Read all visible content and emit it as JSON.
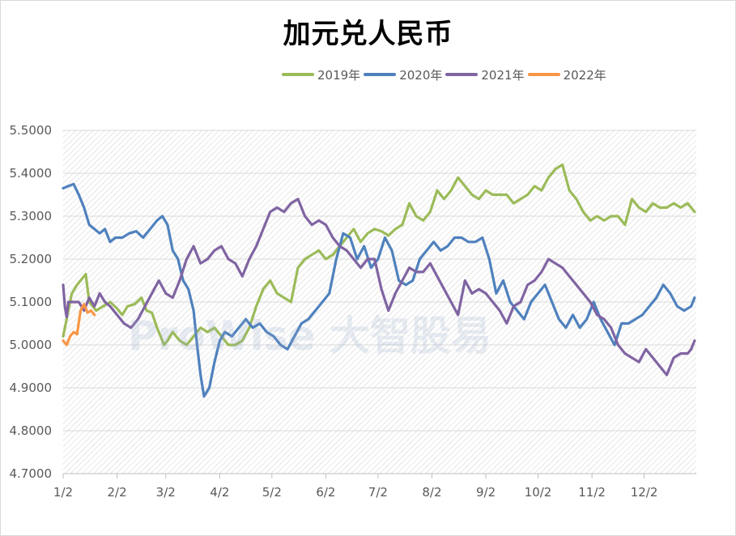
{
  "chart_data": {
    "type": "line",
    "title": "加元兑人民币",
    "xlabel": "",
    "ylabel": "",
    "ylim": [
      4.7,
      5.5
    ],
    "yticks": [
      "5.5000",
      "5.4000",
      "5.3000",
      "5.2000",
      "5.1000",
      "5.0000",
      "4.9000",
      "4.8000",
      "4.7000"
    ],
    "xticks": [
      "1/2",
      "2/2",
      "3/2",
      "4/2",
      "5/2",
      "6/2",
      "7/2",
      "8/2",
      "9/2",
      "10/2",
      "11/2",
      "12/2"
    ],
    "grid": true,
    "legend_position": "top",
    "watermark": "ProWise 大智股易",
    "series": [
      {
        "name": "2019年",
        "color": "#9bbb59",
        "x": [
          1,
          6,
          9,
          14,
          16,
          20,
          24,
          28,
          32,
          35,
          38,
          42,
          46,
          49,
          52,
          55,
          59,
          61,
          64,
          68,
          72,
          76,
          80,
          84,
          88,
          92,
          96,
          100,
          104,
          108,
          112,
          116,
          120,
          124,
          128,
          132,
          136,
          140,
          144,
          148,
          152,
          156,
          160,
          164,
          168,
          172,
          176,
          180,
          184,
          188,
          192,
          196,
          200,
          204,
          208,
          212,
          216,
          220,
          224,
          228,
          232,
          236,
          240,
          244,
          248,
          252,
          256,
          260,
          264,
          268,
          272,
          276,
          280,
          284,
          288,
          292,
          296,
          300,
          304,
          308,
          312,
          316,
          320,
          324,
          328,
          332,
          336,
          340,
          344,
          348,
          352,
          356,
          360,
          364
        ],
        "values": [
          5.02,
          5.12,
          5.14,
          5.165,
          5.1,
          5.08,
          5.09,
          5.1,
          5.085,
          5.07,
          5.09,
          5.095,
          5.11,
          5.08,
          5.075,
          5.04,
          5.0,
          5.01,
          5.03,
          5.01,
          5.0,
          5.02,
          5.04,
          5.03,
          5.04,
          5.02,
          5.0,
          5.0,
          5.01,
          5.04,
          5.09,
          5.13,
          5.15,
          5.12,
          5.11,
          5.1,
          5.18,
          5.2,
          5.21,
          5.22,
          5.2,
          5.21,
          5.23,
          5.25,
          5.27,
          5.24,
          5.26,
          5.27,
          5.265,
          5.255,
          5.27,
          5.28,
          5.33,
          5.3,
          5.29,
          5.31,
          5.36,
          5.34,
          5.36,
          5.39,
          5.37,
          5.35,
          5.34,
          5.36,
          5.35,
          5.35,
          5.35,
          5.33,
          5.34,
          5.35,
          5.37,
          5.36,
          5.39,
          5.41,
          5.42,
          5.36,
          5.34,
          5.31,
          5.29,
          5.3,
          5.29,
          5.3,
          5.3,
          5.28,
          5.34,
          5.32,
          5.31,
          5.33,
          5.32,
          5.32,
          5.33,
          5.32,
          5.33,
          5.31
        ]
      },
      {
        "name": "2020年",
        "color": "#4f81bd",
        "x": [
          1,
          4,
          7,
          10,
          13,
          16,
          19,
          22,
          25,
          28,
          31,
          35,
          39,
          43,
          47,
          51,
          55,
          58,
          61,
          64,
          67,
          70,
          73,
          76,
          78,
          80,
          82,
          85,
          88,
          91,
          94,
          98,
          102,
          106,
          110,
          114,
          118,
          122,
          126,
          130,
          134,
          138,
          142,
          146,
          150,
          154,
          158,
          162,
          166,
          170,
          174,
          178,
          182,
          186,
          190,
          194,
          198,
          202,
          206,
          210,
          214,
          218,
          222,
          226,
          230,
          234,
          238,
          242,
          246,
          250,
          254,
          258,
          262,
          266,
          270,
          274,
          278,
          282,
          286,
          290,
          294,
          298,
          302,
          306,
          310,
          314,
          318,
          322,
          326,
          330,
          334,
          338,
          342,
          346,
          350,
          354,
          358,
          362,
          364
        ],
        "values": [
          5.365,
          5.37,
          5.375,
          5.35,
          5.32,
          5.28,
          5.27,
          5.26,
          5.27,
          5.24,
          5.25,
          5.25,
          5.26,
          5.265,
          5.25,
          5.27,
          5.29,
          5.3,
          5.28,
          5.22,
          5.2,
          5.15,
          5.13,
          5.08,
          5.0,
          4.93,
          4.88,
          4.9,
          4.96,
          5.01,
          5.03,
          5.02,
          5.04,
          5.06,
          5.04,
          5.05,
          5.03,
          5.02,
          5.0,
          4.99,
          5.02,
          5.05,
          5.06,
          5.08,
          5.1,
          5.12,
          5.2,
          5.26,
          5.25,
          5.2,
          5.23,
          5.18,
          5.2,
          5.25,
          5.22,
          5.15,
          5.14,
          5.15,
          5.2,
          5.22,
          5.24,
          5.22,
          5.23,
          5.25,
          5.25,
          5.24,
          5.24,
          5.25,
          5.2,
          5.12,
          5.15,
          5.1,
          5.08,
          5.06,
          5.1,
          5.12,
          5.14,
          5.1,
          5.06,
          5.04,
          5.07,
          5.04,
          5.06,
          5.1,
          5.06,
          5.03,
          5.0,
          5.05,
          5.05,
          5.06,
          5.07,
          5.09,
          5.11,
          5.14,
          5.12,
          5.09,
          5.08,
          5.09,
          5.11
        ]
      },
      {
        "name": "2021年",
        "color": "#8064a2",
        "x": [
          1,
          2,
          3,
          4,
          7,
          10,
          13,
          16,
          19,
          22,
          25,
          28,
          32,
          36,
          40,
          44,
          48,
          52,
          56,
          60,
          64,
          68,
          72,
          76,
          80,
          84,
          88,
          92,
          96,
          100,
          104,
          108,
          112,
          116,
          120,
          124,
          128,
          132,
          136,
          140,
          144,
          148,
          152,
          156,
          160,
          164,
          168,
          172,
          176,
          180,
          184,
          188,
          192,
          196,
          200,
          204,
          208,
          212,
          216,
          220,
          224,
          228,
          232,
          236,
          240,
          244,
          248,
          252,
          256,
          260,
          264,
          268,
          272,
          276,
          280,
          284,
          288,
          292,
          296,
          300,
          304,
          308,
          312,
          316,
          320,
          324,
          328,
          332,
          336,
          340,
          344,
          348,
          352,
          356,
          360,
          362,
          364
        ],
        "values": [
          5.14,
          5.09,
          5.065,
          5.1,
          5.1,
          5.1,
          5.08,
          5.11,
          5.09,
          5.12,
          5.1,
          5.09,
          5.07,
          5.05,
          5.04,
          5.06,
          5.09,
          5.12,
          5.15,
          5.12,
          5.11,
          5.15,
          5.2,
          5.23,
          5.19,
          5.2,
          5.22,
          5.23,
          5.2,
          5.19,
          5.16,
          5.2,
          5.23,
          5.27,
          5.31,
          5.32,
          5.31,
          5.33,
          5.34,
          5.3,
          5.28,
          5.29,
          5.28,
          5.25,
          5.23,
          5.22,
          5.2,
          5.18,
          5.2,
          5.2,
          5.13,
          5.08,
          5.12,
          5.15,
          5.18,
          5.17,
          5.17,
          5.19,
          5.16,
          5.13,
          5.1,
          5.07,
          5.15,
          5.12,
          5.13,
          5.12,
          5.1,
          5.08,
          5.05,
          5.09,
          5.1,
          5.14,
          5.15,
          5.17,
          5.2,
          5.19,
          5.18,
          5.16,
          5.14,
          5.12,
          5.1,
          5.07,
          5.06,
          5.04,
          5.0,
          4.98,
          4.97,
          4.96,
          4.99,
          4.97,
          4.95,
          4.93,
          4.97,
          4.98,
          4.98,
          4.99,
          5.01
        ]
      },
      {
        "name": "2022年",
        "color": "#f79646",
        "x": [
          1,
          3,
          5,
          7,
          9,
          11,
          13,
          15,
          17,
          19
        ],
        "values": [
          5.01,
          5.0,
          5.02,
          5.03,
          5.025,
          5.08,
          5.095,
          5.075,
          5.08,
          5.07
        ]
      }
    ]
  }
}
